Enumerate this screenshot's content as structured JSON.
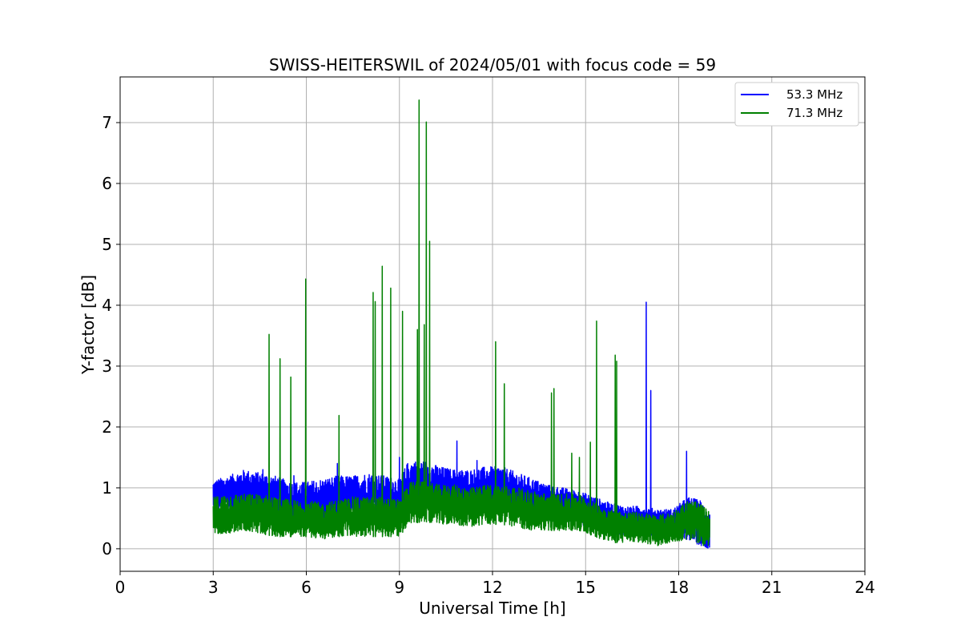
{
  "chart_data": {
    "type": "line",
    "title": "SWISS-HEITERSWIL of 2024/05/01 with focus code = 59",
    "xlabel": "Universal Time [h]",
    "ylabel": "Y-factor [dB]",
    "xlim": [
      0,
      24
    ],
    "ylim": [
      -0.37,
      7.75
    ],
    "xticks": [
      0,
      3,
      6,
      9,
      12,
      15,
      18,
      21,
      24
    ],
    "yticks": [
      0,
      1,
      2,
      3,
      4,
      5,
      6,
      7
    ],
    "grid": true,
    "legend_position": "top-right",
    "colors": {
      "series_1": "#0000ff",
      "series_2": "#008000",
      "grid": "#b0b0b0",
      "axes": "#000000"
    },
    "series": [
      {
        "name": "53.3 MHz",
        "color": "#0000ff",
        "band": [
          [
            3.0,
            0.85,
            0.55,
            1.12
          ],
          [
            3.5,
            0.9,
            0.6,
            1.2
          ],
          [
            4.0,
            0.95,
            0.6,
            1.3
          ],
          [
            4.5,
            0.9,
            0.55,
            1.25
          ],
          [
            5.0,
            0.8,
            0.5,
            1.2
          ],
          [
            5.5,
            0.75,
            0.45,
            1.1
          ],
          [
            6.0,
            0.7,
            0.4,
            1.1
          ],
          [
            6.5,
            0.72,
            0.4,
            1.15
          ],
          [
            7.0,
            0.75,
            0.45,
            1.2
          ],
          [
            7.5,
            0.8,
            0.5,
            1.2
          ],
          [
            8.0,
            0.85,
            0.5,
            1.25
          ],
          [
            8.5,
            0.85,
            0.5,
            1.2
          ],
          [
            9.0,
            0.8,
            0.5,
            1.15
          ],
          [
            9.3,
            1.0,
            0.6,
            1.45
          ],
          [
            9.8,
            1.05,
            0.65,
            1.45
          ],
          [
            10.3,
            1.0,
            0.6,
            1.35
          ],
          [
            10.8,
            0.95,
            0.6,
            1.3
          ],
          [
            11.3,
            0.95,
            0.55,
            1.3
          ],
          [
            11.8,
            1.0,
            0.6,
            1.35
          ],
          [
            12.3,
            1.0,
            0.6,
            1.35
          ],
          [
            12.8,
            0.9,
            0.55,
            1.25
          ],
          [
            13.3,
            0.85,
            0.5,
            1.15
          ],
          [
            13.8,
            0.8,
            0.45,
            1.05
          ],
          [
            14.3,
            0.75,
            0.45,
            1.0
          ],
          [
            14.8,
            0.7,
            0.4,
            0.95
          ],
          [
            15.3,
            0.6,
            0.3,
            0.85
          ],
          [
            15.8,
            0.5,
            0.25,
            0.75
          ],
          [
            16.3,
            0.45,
            0.2,
            0.7
          ],
          [
            16.8,
            0.5,
            0.25,
            0.7
          ],
          [
            17.3,
            0.45,
            0.2,
            0.65
          ],
          [
            17.8,
            0.45,
            0.2,
            0.65
          ],
          [
            18.3,
            0.55,
            0.15,
            0.85
          ],
          [
            18.7,
            0.45,
            0.05,
            0.8
          ],
          [
            19.0,
            0.3,
            0.0,
            0.6
          ]
        ],
        "spikes": [
          [
            4.6,
            1.3
          ],
          [
            5.6,
            1.2
          ],
          [
            7.0,
            1.4
          ],
          [
            9.0,
            1.5
          ],
          [
            10.85,
            1.77
          ],
          [
            11.5,
            1.45
          ],
          [
            16.95,
            4.05
          ],
          [
            17.1,
            2.6
          ],
          [
            18.25,
            1.6
          ]
        ]
      },
      {
        "name": "71.3 MHz",
        "color": "#008000",
        "band": [
          [
            3.0,
            0.5,
            0.25,
            0.85
          ],
          [
            3.5,
            0.55,
            0.25,
            0.9
          ],
          [
            4.0,
            0.55,
            0.3,
            0.9
          ],
          [
            4.5,
            0.55,
            0.25,
            0.9
          ],
          [
            5.0,
            0.5,
            0.2,
            0.85
          ],
          [
            5.5,
            0.45,
            0.2,
            0.8
          ],
          [
            6.0,
            0.45,
            0.2,
            0.8
          ],
          [
            6.5,
            0.4,
            0.15,
            0.75
          ],
          [
            7.0,
            0.45,
            0.2,
            0.8
          ],
          [
            7.5,
            0.5,
            0.2,
            0.85
          ],
          [
            8.0,
            0.5,
            0.2,
            0.85
          ],
          [
            8.5,
            0.5,
            0.2,
            0.85
          ],
          [
            9.0,
            0.5,
            0.2,
            0.8
          ],
          [
            9.3,
            0.7,
            0.4,
            1.1
          ],
          [
            9.8,
            0.75,
            0.45,
            1.1
          ],
          [
            10.3,
            0.7,
            0.4,
            1.05
          ],
          [
            10.8,
            0.7,
            0.4,
            1.05
          ],
          [
            11.3,
            0.65,
            0.35,
            1.0
          ],
          [
            11.8,
            0.7,
            0.4,
            1.05
          ],
          [
            12.3,
            0.7,
            0.4,
            1.05
          ],
          [
            12.8,
            0.65,
            0.35,
            1.0
          ],
          [
            13.3,
            0.6,
            0.3,
            0.95
          ],
          [
            13.8,
            0.55,
            0.3,
            0.9
          ],
          [
            14.3,
            0.55,
            0.3,
            0.9
          ],
          [
            14.8,
            0.55,
            0.3,
            0.9
          ],
          [
            15.3,
            0.45,
            0.2,
            0.75
          ],
          [
            15.8,
            0.35,
            0.1,
            0.65
          ],
          [
            16.3,
            0.35,
            0.1,
            0.6
          ],
          [
            16.8,
            0.35,
            0.1,
            0.6
          ],
          [
            17.3,
            0.3,
            0.05,
            0.55
          ],
          [
            17.8,
            0.35,
            0.1,
            0.6
          ],
          [
            18.3,
            0.45,
            0.15,
            0.8
          ],
          [
            18.7,
            0.4,
            0.05,
            0.75
          ],
          [
            19.0,
            0.3,
            0.05,
            0.6
          ]
        ],
        "spikes": [
          [
            4.8,
            3.52
          ],
          [
            5.15,
            3.12
          ],
          [
            5.5,
            2.82
          ],
          [
            5.98,
            4.43
          ],
          [
            7.05,
            2.19
          ],
          [
            8.15,
            4.21
          ],
          [
            8.22,
            4.06
          ],
          [
            8.45,
            4.64
          ],
          [
            8.72,
            4.28
          ],
          [
            9.1,
            3.9
          ],
          [
            9.58,
            3.6
          ],
          [
            9.63,
            7.37
          ],
          [
            9.8,
            3.68
          ],
          [
            9.87,
            7.01
          ],
          [
            9.97,
            5.05
          ],
          [
            12.1,
            3.4
          ],
          [
            12.38,
            2.71
          ],
          [
            13.9,
            2.56
          ],
          [
            13.98,
            2.63
          ],
          [
            14.55,
            1.57
          ],
          [
            14.8,
            1.5
          ],
          [
            15.15,
            1.75
          ],
          [
            15.35,
            3.74
          ],
          [
            15.95,
            3.18
          ],
          [
            16.0,
            3.08
          ]
        ]
      }
    ]
  }
}
